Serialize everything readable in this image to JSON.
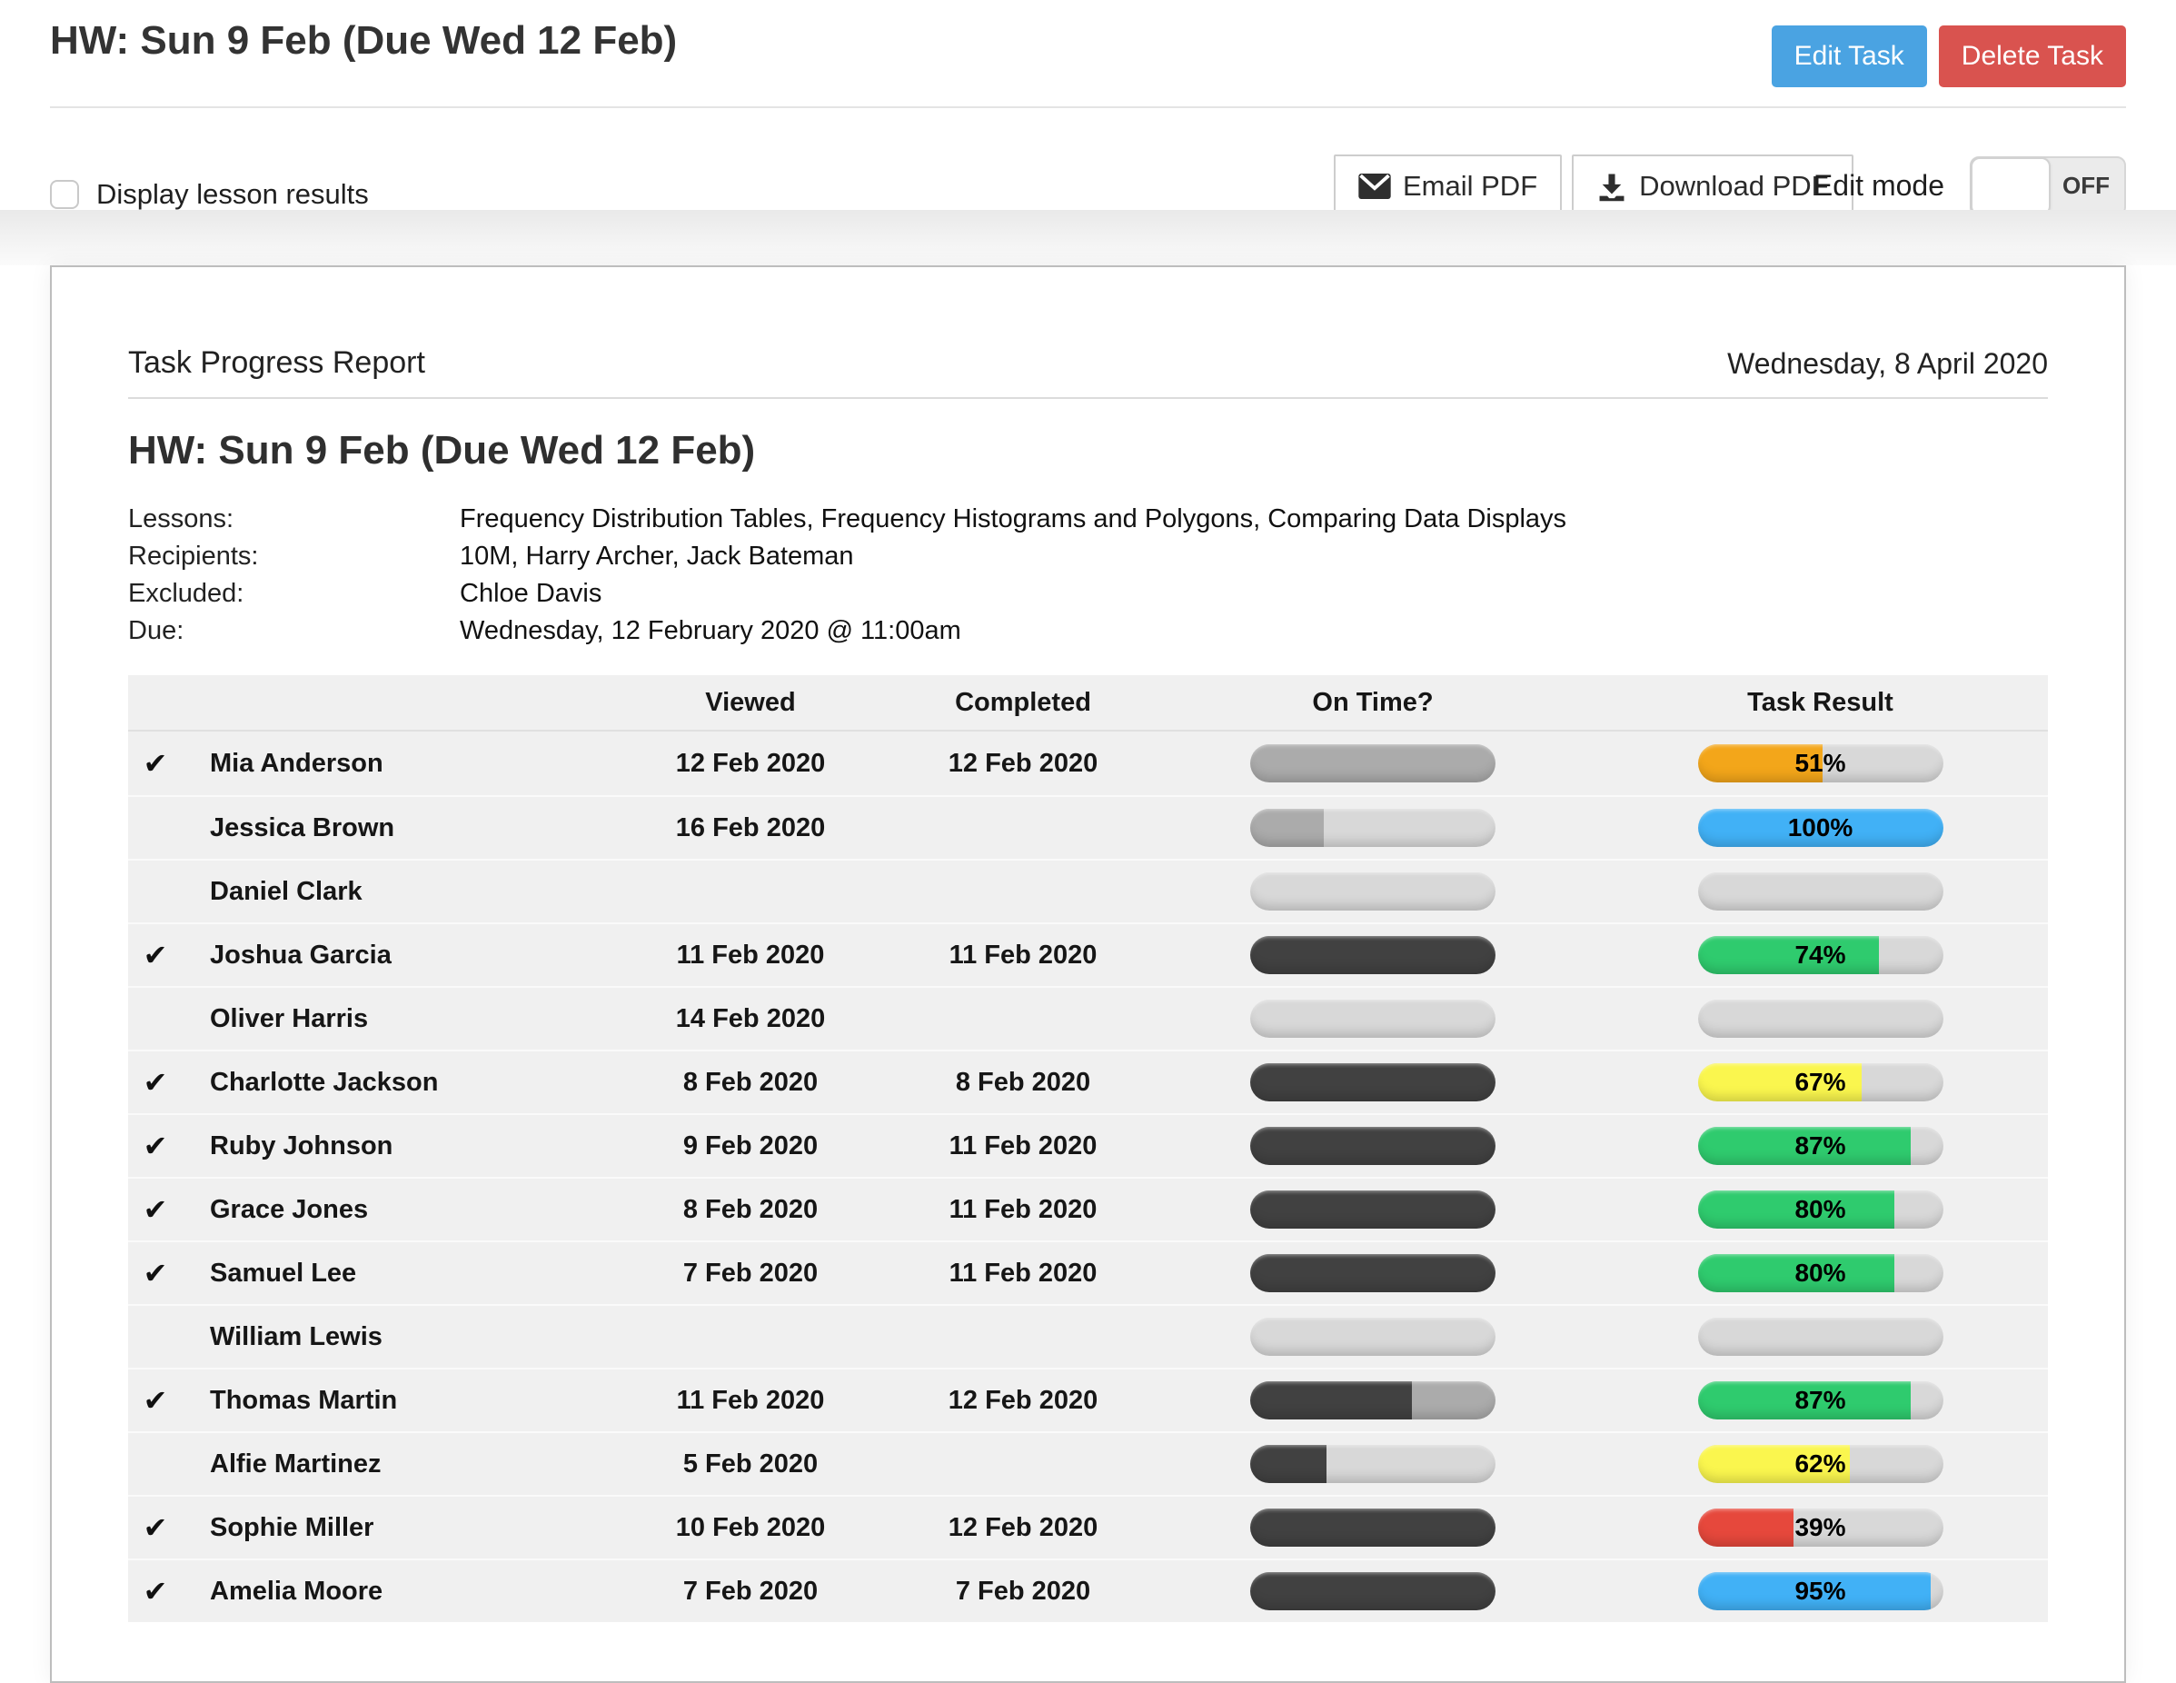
{
  "page": {
    "title": "HW: Sun 9 Feb (Due Wed 12 Feb)"
  },
  "header": {
    "edit_task_label": "Edit Task",
    "delete_task_label": "Delete Task"
  },
  "toolbar": {
    "checkbox_label": "Display lesson results",
    "checkbox_checked": false,
    "email_pdf_label": "Email PDF",
    "download_pdf_label": "Download PDF",
    "edit_mode_label": "Edit mode",
    "edit_mode_state": "OFF"
  },
  "report": {
    "heading": "Task Progress Report",
    "date": "Wednesday, 8 April 2020",
    "task_title": "HW: Sun 9 Feb (Due Wed 12 Feb)",
    "meta": [
      {
        "label": "Lessons:",
        "value": "Frequency Distribution Tables, Frequency Histograms and Polygons, Comparing Data Displays"
      },
      {
        "label": "Recipients:",
        "value": "10M, Harry Archer, Jack Bateman"
      },
      {
        "label": "Excluded:",
        "value": "Chloe Davis"
      },
      {
        "label": "Due:",
        "value": "Wednesday, 12 February 2020 @ 11:00am"
      }
    ]
  },
  "table": {
    "columns": [
      "",
      "",
      "Viewed",
      "Completed",
      "On Time?",
      "Task Result"
    ],
    "check_glyph": "✔",
    "colors": {
      "accent_blue_button": "#4AA3E2",
      "danger_red_button": "#D9534F",
      "track": "#D8D8D8",
      "on_time": {
        "dark": "#414141",
        "mid": "#ABABAB"
      },
      "result": {
        "orange": "#F3A61A",
        "blue": "#41B1F6",
        "green": "#2FCB6E",
        "yellow": "#FAF64E",
        "red": "#E6483C"
      }
    },
    "rows": [
      {
        "check": true,
        "name": "Mia Anderson",
        "viewed": "12 Feb 2020",
        "completed": "12 Feb 2020",
        "on_time": [
          [
            "mid",
            100
          ]
        ],
        "result": {
          "pct": 51,
          "color": "orange"
        }
      },
      {
        "check": false,
        "name": "Jessica Brown",
        "viewed": "16 Feb 2020",
        "completed": "",
        "on_time": [
          [
            "mid",
            30
          ]
        ],
        "result": {
          "pct": 100,
          "color": "blue"
        }
      },
      {
        "check": false,
        "name": "Daniel Clark",
        "viewed": "",
        "completed": "",
        "on_time": [],
        "result": null
      },
      {
        "check": true,
        "name": "Joshua Garcia",
        "viewed": "11 Feb 2020",
        "completed": "11 Feb 2020",
        "on_time": [
          [
            "dark",
            100
          ]
        ],
        "result": {
          "pct": 74,
          "color": "green"
        }
      },
      {
        "check": false,
        "name": "Oliver Harris",
        "viewed": "14 Feb 2020",
        "completed": "",
        "on_time": [],
        "result": null
      },
      {
        "check": true,
        "name": "Charlotte Jackson",
        "viewed": "8 Feb 2020",
        "completed": "8 Feb 2020",
        "on_time": [
          [
            "dark",
            100
          ]
        ],
        "result": {
          "pct": 67,
          "color": "yellow"
        }
      },
      {
        "check": true,
        "name": "Ruby Johnson",
        "viewed": "9 Feb 2020",
        "completed": "11 Feb 2020",
        "on_time": [
          [
            "dark",
            100
          ]
        ],
        "result": {
          "pct": 87,
          "color": "green"
        }
      },
      {
        "check": true,
        "name": "Grace Jones",
        "viewed": "8 Feb 2020",
        "completed": "11 Feb 2020",
        "on_time": [
          [
            "dark",
            100
          ]
        ],
        "result": {
          "pct": 80,
          "color": "green"
        }
      },
      {
        "check": true,
        "name": "Samuel Lee",
        "viewed": "7 Feb 2020",
        "completed": "11 Feb 2020",
        "on_time": [
          [
            "dark",
            100
          ]
        ],
        "result": {
          "pct": 80,
          "color": "green"
        }
      },
      {
        "check": false,
        "name": "William Lewis",
        "viewed": "",
        "completed": "",
        "on_time": [],
        "result": null
      },
      {
        "check": true,
        "name": "Thomas Martin",
        "viewed": "11 Feb 2020",
        "completed": "12 Feb 2020",
        "on_time": [
          [
            "dark",
            66
          ],
          [
            "mid",
            34
          ]
        ],
        "result": {
          "pct": 87,
          "color": "green"
        }
      },
      {
        "check": false,
        "name": "Alfie Martinez",
        "viewed": "5 Feb 2020",
        "completed": "",
        "on_time": [
          [
            "dark",
            31
          ]
        ],
        "result": {
          "pct": 62,
          "color": "yellow"
        }
      },
      {
        "check": true,
        "name": "Sophie Miller",
        "viewed": "10 Feb 2020",
        "completed": "12 Feb 2020",
        "on_time": [
          [
            "dark",
            100
          ]
        ],
        "result": {
          "pct": 39,
          "color": "red"
        }
      },
      {
        "check": true,
        "name": "Amelia Moore",
        "viewed": "7 Feb 2020",
        "completed": "7 Feb 2020",
        "on_time": [
          [
            "dark",
            100
          ]
        ],
        "result": {
          "pct": 95,
          "color": "blue"
        }
      }
    ]
  }
}
